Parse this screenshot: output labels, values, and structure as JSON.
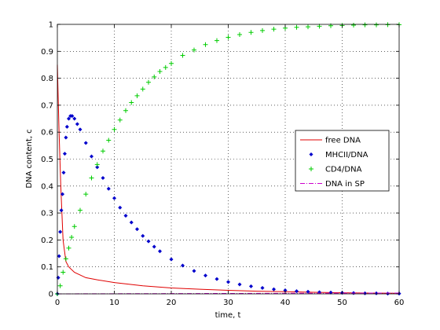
{
  "chart_data": {
    "type": "line",
    "title": "",
    "xlabel": "time, t",
    "ylabel": "DNA content, c",
    "xlim": [
      0,
      60
    ],
    "ylim": [
      0,
      1
    ],
    "xticks": [
      "0",
      "10",
      "20",
      "30",
      "40",
      "50",
      "60"
    ],
    "yticks": [
      "0",
      "0.1",
      "0.2",
      "0.3",
      "0.4",
      "0.5",
      "0.6",
      "0.7",
      "0.8",
      "0.9",
      "1"
    ],
    "grid": true,
    "legend_position": "right-middle",
    "series": [
      {
        "name": "free DNA",
        "style": "solid-line",
        "color": "#e00000",
        "points": [
          [
            0,
            0.85
          ],
          [
            0.3,
            0.6
          ],
          [
            0.6,
            0.4
          ],
          [
            1,
            0.2
          ],
          [
            1.5,
            0.12
          ],
          [
            2,
            0.1
          ],
          [
            3,
            0.08
          ],
          [
            5,
            0.06
          ],
          [
            7,
            0.052
          ],
          [
            10,
            0.042
          ],
          [
            15,
            0.03
          ],
          [
            20,
            0.022
          ],
          [
            25,
            0.017
          ],
          [
            30,
            0.013
          ],
          [
            35,
            0.01
          ],
          [
            40,
            0.008
          ],
          [
            45,
            0.006
          ],
          [
            50,
            0.004
          ],
          [
            55,
            0.003
          ],
          [
            60,
            0.002
          ]
        ]
      },
      {
        "name": "MHCII/DNA",
        "style": "diamond-markers",
        "color": "#0000cc",
        "points": [
          [
            0,
            0
          ],
          [
            0.15,
            0.06
          ],
          [
            0.3,
            0.14
          ],
          [
            0.5,
            0.23
          ],
          [
            0.7,
            0.31
          ],
          [
            0.9,
            0.37
          ],
          [
            1.1,
            0.45
          ],
          [
            1.3,
            0.52
          ],
          [
            1.5,
            0.58
          ],
          [
            1.7,
            0.62
          ],
          [
            2,
            0.65
          ],
          [
            2.3,
            0.66
          ],
          [
            2.6,
            0.66
          ],
          [
            3,
            0.65
          ],
          [
            3.5,
            0.63
          ],
          [
            4,
            0.61
          ],
          [
            5,
            0.56
          ],
          [
            6,
            0.51
          ],
          [
            7,
            0.47
          ],
          [
            8,
            0.43
          ],
          [
            9,
            0.39
          ],
          [
            10,
            0.355
          ],
          [
            11,
            0.32
          ],
          [
            12,
            0.29
          ],
          [
            13,
            0.265
          ],
          [
            14,
            0.24
          ],
          [
            15,
            0.215
          ],
          [
            16,
            0.195
          ],
          [
            17,
            0.175
          ],
          [
            18,
            0.158
          ],
          [
            20,
            0.128
          ],
          [
            22,
            0.105
          ],
          [
            24,
            0.085
          ],
          [
            26,
            0.068
          ],
          [
            28,
            0.055
          ],
          [
            30,
            0.044
          ],
          [
            32,
            0.035
          ],
          [
            34,
            0.028
          ],
          [
            36,
            0.022
          ],
          [
            38,
            0.017
          ],
          [
            40,
            0.013
          ],
          [
            42,
            0.01
          ],
          [
            44,
            0.008
          ],
          [
            46,
            0.006
          ],
          [
            48,
            0.005
          ],
          [
            50,
            0.004
          ],
          [
            52,
            0.003
          ],
          [
            54,
            0.002
          ],
          [
            56,
            0.002
          ],
          [
            58,
            0.001
          ],
          [
            60,
            0.001
          ]
        ]
      },
      {
        "name": "CD4/DNA",
        "style": "plus-markers",
        "color": "#00cc00",
        "points": [
          [
            0,
            0
          ],
          [
            0.5,
            0.03
          ],
          [
            1,
            0.08
          ],
          [
            1.5,
            0.13
          ],
          [
            2,
            0.17
          ],
          [
            2.5,
            0.21
          ],
          [
            3,
            0.25
          ],
          [
            4,
            0.31
          ],
          [
            5,
            0.37
          ],
          [
            6,
            0.43
          ],
          [
            7,
            0.48
          ],
          [
            8,
            0.53
          ],
          [
            9,
            0.57
          ],
          [
            10,
            0.61
          ],
          [
            11,
            0.645
          ],
          [
            12,
            0.68
          ],
          [
            13,
            0.71
          ],
          [
            14,
            0.735
          ],
          [
            15,
            0.76
          ],
          [
            16,
            0.785
          ],
          [
            17,
            0.805
          ],
          [
            18,
            0.825
          ],
          [
            19,
            0.84
          ],
          [
            20,
            0.855
          ],
          [
            22,
            0.885
          ],
          [
            24,
            0.905
          ],
          [
            26,
            0.925
          ],
          [
            28,
            0.94
          ],
          [
            30,
            0.952
          ],
          [
            32,
            0.962
          ],
          [
            34,
            0.97
          ],
          [
            36,
            0.977
          ],
          [
            38,
            0.982
          ],
          [
            40,
            0.986
          ],
          [
            42,
            0.989
          ],
          [
            44,
            0.991
          ],
          [
            46,
            0.993
          ],
          [
            48,
            0.995
          ],
          [
            50,
            0.996
          ],
          [
            52,
            0.997
          ],
          [
            54,
            0.998
          ],
          [
            56,
            0.998
          ],
          [
            58,
            0.999
          ],
          [
            60,
            0.999
          ]
        ]
      },
      {
        "name": "DNA in SP",
        "style": "dash-dot-line",
        "color": "#cc00cc",
        "points": [
          [
            0,
            0
          ],
          [
            10,
            0.0005
          ],
          [
            20,
            0.001
          ],
          [
            30,
            0.0015
          ],
          [
            40,
            0.002
          ],
          [
            50,
            0.0025
          ],
          [
            60,
            0.003
          ]
        ]
      }
    ]
  }
}
